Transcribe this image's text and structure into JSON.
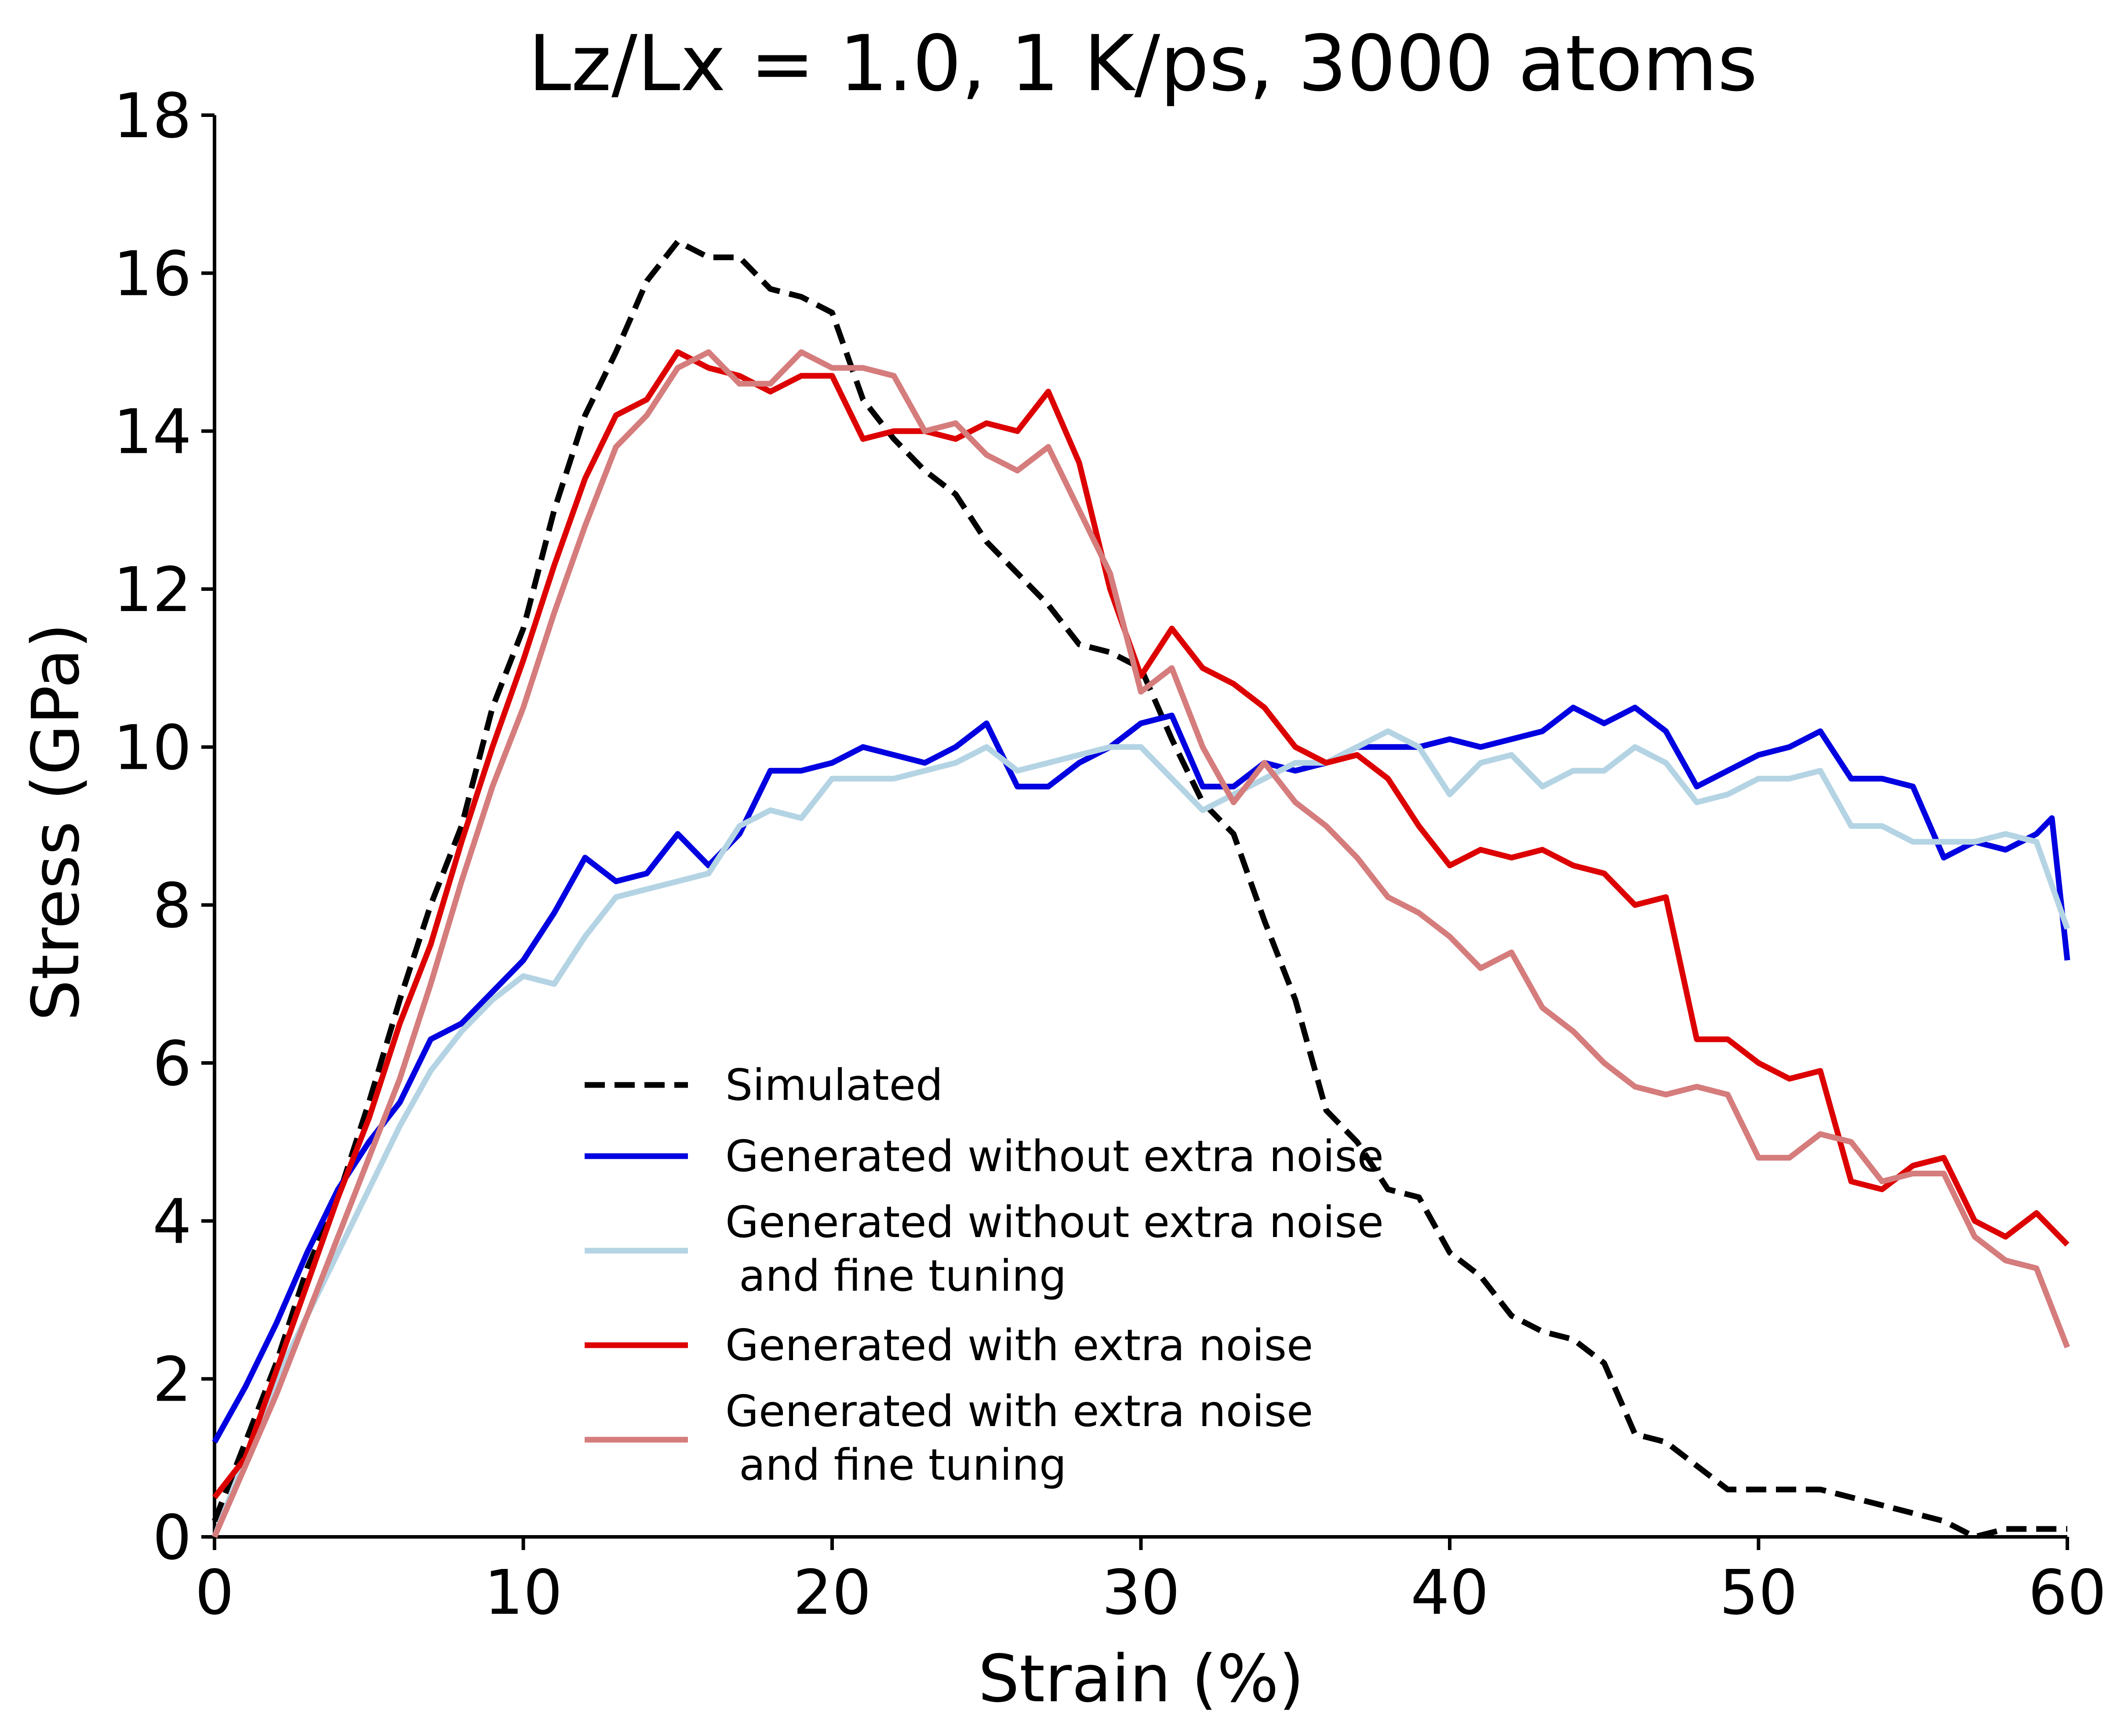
{
  "chart_data": {
    "type": "line",
    "title": "Lz/Lx = 1.0, 1 K/ps, 3000 atoms",
    "xlabel": "Strain (%)",
    "ylabel": "Stress (GPa)",
    "xlim": [
      0,
      60
    ],
    "ylim": [
      0,
      18
    ],
    "xticks": [
      "0",
      "10",
      "20",
      "30",
      "40",
      "50",
      "60"
    ],
    "yticks": [
      "0",
      "2",
      "4",
      "6",
      "8",
      "10",
      "12",
      "14",
      "16",
      "18"
    ],
    "grid": false,
    "legend_position": "lower-center",
    "series": [
      {
        "name": "Simulated",
        "color": "#000000",
        "style": "dashed",
        "x": [
          0,
          1,
          2,
          3,
          4,
          5,
          6,
          7,
          8,
          9,
          10,
          11,
          12,
          13,
          14,
          15,
          16,
          17,
          18,
          19,
          20,
          21,
          22,
          23,
          24,
          25,
          26,
          27,
          28,
          29,
          30,
          31,
          32,
          33,
          34,
          35,
          36,
          37,
          38,
          39,
          40,
          41,
          42,
          43,
          44,
          45,
          46,
          47,
          48,
          49,
          50,
          51,
          52,
          53,
          54,
          55,
          56,
          57,
          58,
          59,
          60
        ],
        "values": [
          0.2,
          1.2,
          2.2,
          3.4,
          4.3,
          5.5,
          6.8,
          8.0,
          9.0,
          10.5,
          11.5,
          13.0,
          14.2,
          15.0,
          15.9,
          16.4,
          16.2,
          16.2,
          15.8,
          15.7,
          15.5,
          14.4,
          13.9,
          13.5,
          13.2,
          12.6,
          12.2,
          11.8,
          11.3,
          11.2,
          11.0,
          10.1,
          9.3,
          8.9,
          7.8,
          6.8,
          5.4,
          5.0,
          4.4,
          4.3,
          3.6,
          3.3,
          2.8,
          2.6,
          2.5,
          2.2,
          1.3,
          1.2,
          0.9,
          0.6,
          0.6,
          0.6,
          0.6,
          0.5,
          0.4,
          0.3,
          0.2,
          0.0,
          0.1,
          0.1,
          0.1
        ]
      },
      {
        "name": "Generated without extra noise",
        "color": "#0000e0",
        "style": "solid",
        "x": [
          0,
          1,
          2,
          3,
          4,
          5,
          6,
          7,
          8,
          9,
          10,
          11,
          12,
          13,
          14,
          15,
          16,
          17,
          18,
          19,
          20,
          21,
          22,
          23,
          24,
          25,
          26,
          27,
          28,
          29,
          30,
          31,
          32,
          33,
          34,
          35,
          36,
          37,
          38,
          39,
          40,
          41,
          42,
          43,
          44,
          45,
          46,
          47,
          48,
          49,
          50,
          51,
          52,
          53,
          54,
          55,
          56,
          57,
          58,
          59,
          59.5,
          60
        ],
        "values": [
          1.2,
          1.9,
          2.7,
          3.6,
          4.4,
          5.0,
          5.5,
          6.3,
          6.5,
          6.9,
          7.3,
          7.9,
          8.6,
          8.3,
          8.4,
          8.9,
          8.5,
          8.9,
          9.7,
          9.7,
          9.8,
          10.0,
          9.9,
          9.8,
          10.0,
          10.3,
          9.5,
          9.5,
          9.8,
          10.0,
          10.3,
          10.4,
          9.5,
          9.5,
          9.8,
          9.7,
          9.8,
          10.0,
          10.0,
          10.0,
          10.1,
          10.0,
          10.1,
          10.2,
          10.5,
          10.3,
          10.5,
          10.2,
          9.5,
          9.7,
          9.9,
          10.0,
          10.2,
          9.6,
          9.6,
          9.5,
          8.6,
          8.8,
          8.7,
          8.9,
          9.1,
          7.3
        ]
      },
      {
        "name": "Generated without extra noise\n and fine tuning",
        "color": "#b4d4e4",
        "style": "solid",
        "x": [
          0,
          1,
          2,
          3,
          4,
          5,
          6,
          7,
          8,
          9,
          10,
          11,
          12,
          13,
          14,
          15,
          16,
          17,
          18,
          19,
          20,
          21,
          22,
          23,
          24,
          25,
          26,
          27,
          28,
          29,
          30,
          31,
          32,
          33,
          34,
          35,
          36,
          37,
          38,
          39,
          40,
          41,
          42,
          43,
          44,
          45,
          46,
          47,
          48,
          49,
          50,
          51,
          52,
          53,
          54,
          55,
          56,
          57,
          58,
          59,
          60
        ],
        "values": [
          0.0,
          1.0,
          2.0,
          2.8,
          3.6,
          4.4,
          5.2,
          5.9,
          6.4,
          6.8,
          7.1,
          7.0,
          7.6,
          8.1,
          8.2,
          8.3,
          8.4,
          9.0,
          9.2,
          9.1,
          9.6,
          9.6,
          9.6,
          9.7,
          9.8,
          10.0,
          9.7,
          9.8,
          9.9,
          10.0,
          10.0,
          9.6,
          9.2,
          9.4,
          9.6,
          9.8,
          9.8,
          10.0,
          10.2,
          10.0,
          9.4,
          9.8,
          9.9,
          9.5,
          9.7,
          9.7,
          10.0,
          9.8,
          9.3,
          9.4,
          9.6,
          9.6,
          9.7,
          9.0,
          9.0,
          8.8,
          8.8,
          8.8,
          8.9,
          8.8,
          7.7
        ]
      },
      {
        "name": "Generated with extra noise",
        "color": "#dd0000",
        "style": "solid",
        "x": [
          0,
          1,
          2,
          3,
          4,
          5,
          6,
          7,
          8,
          9,
          10,
          11,
          12,
          13,
          14,
          15,
          16,
          17,
          18,
          19,
          20,
          21,
          22,
          23,
          24,
          25,
          26,
          27,
          28,
          29,
          30,
          31,
          32,
          33,
          34,
          35,
          36,
          37,
          38,
          39,
          40,
          41,
          42,
          43,
          44,
          45,
          46,
          47,
          48,
          49,
          50,
          51,
          52,
          53,
          54,
          55,
          56,
          57,
          58,
          59,
          60
        ],
        "values": [
          0.5,
          1.0,
          2.1,
          3.2,
          4.3,
          5.3,
          6.5,
          7.5,
          8.8,
          10.0,
          11.1,
          12.3,
          13.4,
          14.2,
          14.4,
          15.0,
          14.8,
          14.7,
          14.5,
          14.7,
          14.7,
          13.9,
          14.0,
          14.0,
          13.9,
          14.1,
          14.0,
          14.5,
          13.6,
          12.0,
          10.9,
          11.5,
          11.0,
          10.8,
          10.5,
          10.0,
          9.8,
          9.9,
          9.6,
          9.0,
          8.5,
          8.7,
          8.6,
          8.7,
          8.5,
          8.4,
          8.0,
          8.1,
          6.3,
          6.3,
          6.0,
          5.8,
          5.9,
          4.5,
          4.4,
          4.7,
          4.8,
          4.0,
          3.8,
          4.1,
          3.7
        ]
      },
      {
        "name": "Generated with extra noise\n and fine tuning",
        "color": "#d57c7c",
        "style": "solid",
        "x": [
          0,
          1,
          2,
          3,
          4,
          5,
          6,
          7,
          8,
          9,
          10,
          11,
          12,
          13,
          14,
          15,
          16,
          17,
          18,
          19,
          20,
          21,
          22,
          23,
          24,
          25,
          26,
          27,
          28,
          29,
          30,
          31,
          32,
          33,
          34,
          35,
          36,
          37,
          38,
          39,
          40,
          41,
          42,
          43,
          44,
          45,
          46,
          47,
          48,
          49,
          50,
          51,
          52,
          53,
          54,
          55,
          56,
          57,
          58,
          59,
          60
        ],
        "values": [
          0.0,
          0.9,
          1.8,
          2.8,
          3.8,
          4.8,
          5.8,
          7.0,
          8.3,
          9.5,
          10.5,
          11.7,
          12.8,
          13.8,
          14.2,
          14.8,
          15.0,
          14.6,
          14.6,
          15.0,
          14.8,
          14.8,
          14.7,
          14.0,
          14.1,
          13.7,
          13.5,
          13.8,
          13.0,
          12.2,
          10.7,
          11.0,
          10.0,
          9.3,
          9.8,
          9.3,
          9.0,
          8.6,
          8.1,
          7.9,
          7.6,
          7.2,
          7.4,
          6.7,
          6.4,
          6.0,
          5.7,
          5.6,
          5.7,
          5.6,
          4.8,
          4.8,
          5.1,
          5.0,
          4.5,
          4.6,
          4.6,
          3.8,
          3.5,
          3.4,
          2.4
        ]
      }
    ]
  }
}
